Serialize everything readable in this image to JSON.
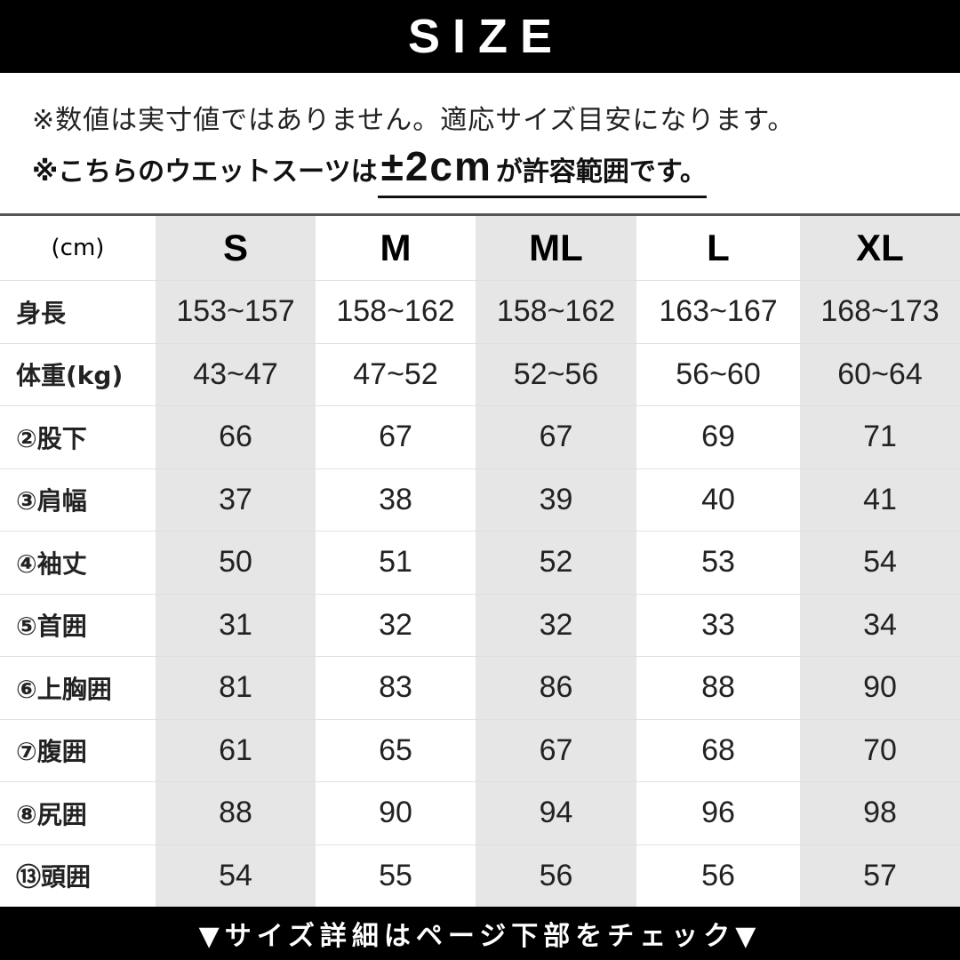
{
  "header": {
    "title": "SIZE"
  },
  "notes": {
    "line1": "※数値は実寸値ではありません。適応サイズ目安になります。",
    "line2_prefix": "※こちらのウエットスーツは",
    "line2_emph": "±2cm",
    "line2_suffix": "が許容範囲です。"
  },
  "table": {
    "unit_label": "(cm)",
    "sizes": [
      "S",
      "M",
      "ML",
      "L",
      "XL"
    ],
    "rows": [
      {
        "label": "身長",
        "values": [
          "153~157",
          "158~162",
          "158~162",
          "163~167",
          "168~173"
        ]
      },
      {
        "label": "体重(kg)",
        "values": [
          "43~47",
          "47~52",
          "52~56",
          "56~60",
          "60~64"
        ]
      },
      {
        "label": "②股下",
        "values": [
          "66",
          "67",
          "67",
          "69",
          "71"
        ]
      },
      {
        "label": "③肩幅",
        "values": [
          "37",
          "38",
          "39",
          "40",
          "41"
        ]
      },
      {
        "label": "④袖丈",
        "values": [
          "50",
          "51",
          "52",
          "53",
          "54"
        ]
      },
      {
        "label": "⑤首囲",
        "values": [
          "31",
          "32",
          "32",
          "33",
          "34"
        ]
      },
      {
        "label": "⑥上胸囲",
        "values": [
          "81",
          "83",
          "86",
          "88",
          "90"
        ]
      },
      {
        "label": "⑦腹囲",
        "values": [
          "61",
          "65",
          "67",
          "68",
          "70"
        ]
      },
      {
        "label": "⑧尻囲",
        "values": [
          "88",
          "90",
          "94",
          "96",
          "98"
        ]
      },
      {
        "label": "⑬頭囲",
        "values": [
          "54",
          "55",
          "56",
          "56",
          "57"
        ]
      }
    ]
  },
  "footer": {
    "text": "▼サイズ詳細はページ下部をチェック▼"
  },
  "colors": {
    "band": "#000000",
    "shaded_column": "#e6e6e6"
  }
}
